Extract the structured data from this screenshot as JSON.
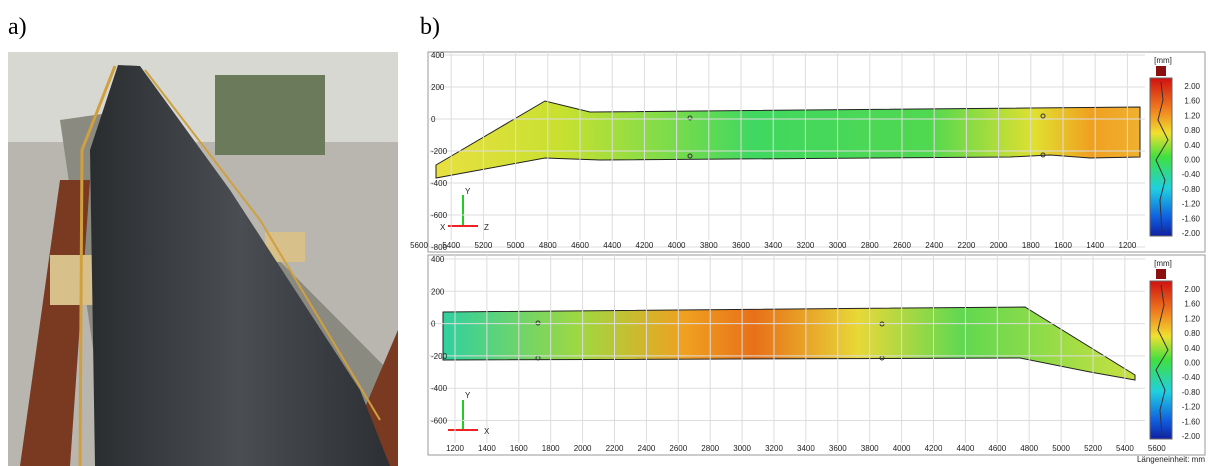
{
  "panel_a": {
    "label": "a)"
  },
  "panel_b": {
    "label": "b)",
    "unit_note": "Längeneinheit: mm",
    "top": {
      "y_ticks": [
        "400",
        "200",
        "0",
        "-200",
        "-400",
        "-600",
        "-800"
      ],
      "x_ticks": [
        "5600",
        "5400",
        "5200",
        "5000",
        "4800",
        "4600",
        "4400",
        "4200",
        "4000",
        "3800",
        "3600",
        "3400",
        "3200",
        "3000",
        "2800",
        "2600",
        "2400",
        "2200",
        "2000",
        "1800",
        "1600",
        "1400",
        "1200"
      ],
      "scale_unit": "[mm]",
      "scale_ticks": [
        "2.00",
        "1.60",
        "1.20",
        "0.80",
        "0.40",
        "0.00",
        "-0.40",
        "-0.80",
        "-1.20",
        "-1.60",
        "-2.00"
      ],
      "axis_letters": [
        "Y",
        "X",
        "Z"
      ]
    },
    "bottom": {
      "y_ticks": [
        "400",
        "200",
        "0",
        "-200",
        "-400",
        "-600"
      ],
      "x_ticks": [
        "1200",
        "1400",
        "1600",
        "1800",
        "2000",
        "2200",
        "2400",
        "2600",
        "2800",
        "3000",
        "3200",
        "3400",
        "3600",
        "3800",
        "4000",
        "4200",
        "4400",
        "4600",
        "4800",
        "5000",
        "5200",
        "5400",
        "5600"
      ],
      "scale_unit": "[mm]",
      "scale_ticks": [
        "2.00",
        "1.60",
        "1.20",
        "0.80",
        "0.40",
        "0.00",
        "-0.40",
        "-0.80",
        "-1.20",
        "-1.60",
        "-2.00"
      ],
      "axis_letters": [
        "Y",
        "X"
      ]
    }
  }
}
